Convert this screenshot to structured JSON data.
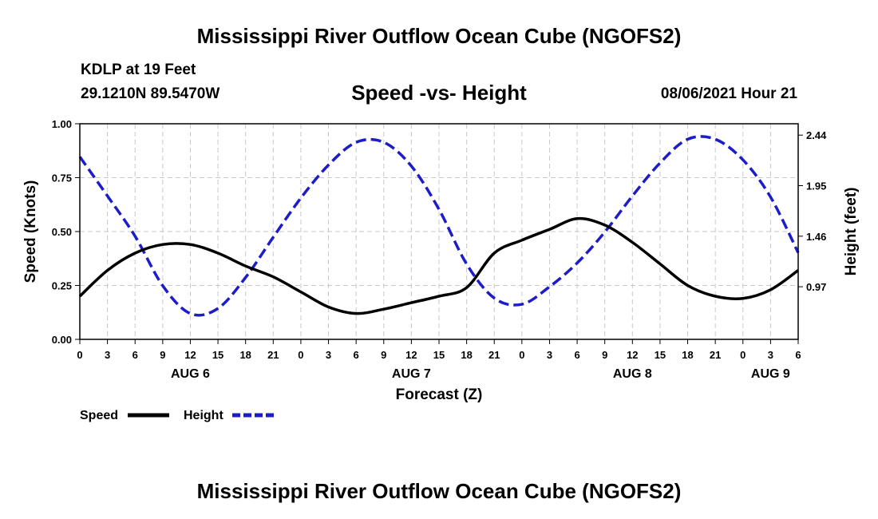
{
  "header": {
    "title": "Mississippi River Outflow Ocean Cube (NGOFS2)",
    "station": "KDLP at 19 Feet",
    "coordinates": "29.1210N  89.5470W",
    "subtitle": "Speed -vs- Height",
    "timestamp": "08/06/2021 Hour 21"
  },
  "footer": {
    "title": "Mississippi River Outflow Ocean Cube (NGOFS2)"
  },
  "chart_data": {
    "type": "line",
    "title": "Speed -vs- Height",
    "xlabel": "Forecast (Z)",
    "ylabel": "Speed (Knots)",
    "y2label": "Height (feet)",
    "x_unit": "hours from AUG 6 00Z",
    "xlim": [
      0,
      78
    ],
    "ylim": [
      0,
      1
    ],
    "y2lim": [
      0.46,
      2.55
    ],
    "grid": true,
    "x_ticks": [
      {
        "x": 0,
        "label": "0"
      },
      {
        "x": 3,
        "label": "3"
      },
      {
        "x": 6,
        "label": "6"
      },
      {
        "x": 9,
        "label": "9"
      },
      {
        "x": 12,
        "label": "12"
      },
      {
        "x": 15,
        "label": "15"
      },
      {
        "x": 18,
        "label": "18"
      },
      {
        "x": 21,
        "label": "21"
      },
      {
        "x": 24,
        "label": "0"
      },
      {
        "x": 27,
        "label": "3"
      },
      {
        "x": 30,
        "label": "6"
      },
      {
        "x": 33,
        "label": "9"
      },
      {
        "x": 36,
        "label": "12"
      },
      {
        "x": 39,
        "label": "15"
      },
      {
        "x": 42,
        "label": "18"
      },
      {
        "x": 45,
        "label": "21"
      },
      {
        "x": 48,
        "label": "0"
      },
      {
        "x": 51,
        "label": "3"
      },
      {
        "x": 54,
        "label": "6"
      },
      {
        "x": 57,
        "label": "9"
      },
      {
        "x": 60,
        "label": "12"
      },
      {
        "x": 63,
        "label": "15"
      },
      {
        "x": 66,
        "label": "18"
      },
      {
        "x": 69,
        "label": "21"
      },
      {
        "x": 72,
        "label": "0"
      },
      {
        "x": 75,
        "label": "3"
      },
      {
        "x": 78,
        "label": "6"
      }
    ],
    "day_labels": [
      {
        "x": 12,
        "label": "AUG 6"
      },
      {
        "x": 36,
        "label": "AUG 7"
      },
      {
        "x": 60,
        "label": "AUG 8"
      },
      {
        "x": 75,
        "label": "AUG 9"
      }
    ],
    "y_ticks": [
      {
        "value": 0.0,
        "label": "0.00"
      },
      {
        "value": 0.25,
        "label": "0.25"
      },
      {
        "value": 0.5,
        "label": "0.50"
      },
      {
        "value": 0.75,
        "label": "0.75"
      },
      {
        "value": 1.0,
        "label": "1.00"
      }
    ],
    "y2_ticks": [
      {
        "value": 0.97,
        "label": "0.97"
      },
      {
        "value": 1.46,
        "label": "1.46"
      },
      {
        "value": 1.95,
        "label": "1.95"
      },
      {
        "value": 2.44,
        "label": "2.44"
      }
    ],
    "series": [
      {
        "name": "Speed",
        "axis": "left",
        "color": "#000000",
        "style": "solid",
        "points": [
          [
            0,
            0.2
          ],
          [
            3,
            0.32
          ],
          [
            6,
            0.4
          ],
          [
            9,
            0.44
          ],
          [
            12,
            0.44
          ],
          [
            15,
            0.4
          ],
          [
            18,
            0.34
          ],
          [
            21,
            0.29
          ],
          [
            24,
            0.22
          ],
          [
            27,
            0.15
          ],
          [
            30,
            0.12
          ],
          [
            33,
            0.14
          ],
          [
            36,
            0.17
          ],
          [
            39,
            0.2
          ],
          [
            42,
            0.24
          ],
          [
            45,
            0.4
          ],
          [
            48,
            0.46
          ],
          [
            51,
            0.51
          ],
          [
            54,
            0.56
          ],
          [
            57,
            0.53
          ],
          [
            60,
            0.45
          ],
          [
            63,
            0.35
          ],
          [
            66,
            0.25
          ],
          [
            69,
            0.2
          ],
          [
            72,
            0.19
          ],
          [
            75,
            0.23
          ],
          [
            78,
            0.32
          ]
        ]
      },
      {
        "name": "Height",
        "axis": "right",
        "color": "#1c1cc8",
        "style": "dashed",
        "points": [
          [
            0,
            2.23
          ],
          [
            3,
            1.85
          ],
          [
            6,
            1.46
          ],
          [
            9,
            0.98
          ],
          [
            12,
            0.71
          ],
          [
            15,
            0.76
          ],
          [
            18,
            1.06
          ],
          [
            21,
            1.45
          ],
          [
            24,
            1.83
          ],
          [
            27,
            2.15
          ],
          [
            30,
            2.37
          ],
          [
            33,
            2.37
          ],
          [
            36,
            2.14
          ],
          [
            39,
            1.72
          ],
          [
            42,
            1.19
          ],
          [
            45,
            0.86
          ],
          [
            48,
            0.8
          ],
          [
            51,
            0.97
          ],
          [
            54,
            1.2
          ],
          [
            57,
            1.5
          ],
          [
            60,
            1.85
          ],
          [
            63,
            2.17
          ],
          [
            66,
            2.4
          ],
          [
            69,
            2.4
          ],
          [
            72,
            2.2
          ],
          [
            75,
            1.84
          ],
          [
            78,
            1.3
          ]
        ]
      }
    ],
    "legend": {
      "placement": "bottom-left",
      "entries": [
        {
          "name": "Speed",
          "color": "#000000",
          "style": "solid"
        },
        {
          "name": "Height",
          "color": "#1c1cc8",
          "style": "dashed"
        }
      ]
    }
  }
}
